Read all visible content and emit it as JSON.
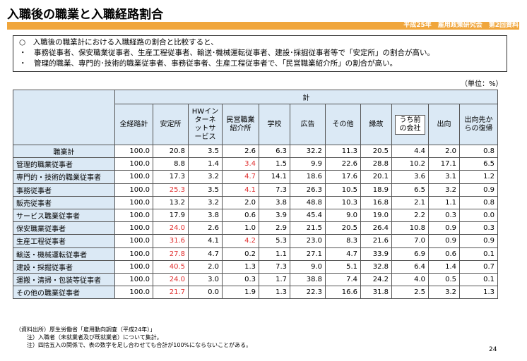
{
  "title": "入職後の職業と入職経路割合",
  "header_bar": "平成25年　雇用政策研究会　第2回資料",
  "summary": [
    "○　入職後の職業計における入職経路の割合と比較すると、",
    "・　事務従事者、保安職業従事者、生産工程従事者、輸送･機械運転従事者、建設･採掘従事者等で「安定所」の割合が高い。",
    "・　管理的職業、専門的･技術的職業従事者、事務従事者、生産工程従事者で、「民営職業紹介所」の割合が高い。"
  ],
  "unit": "（単位：%）",
  "table": {
    "group_header": "計",
    "columns": [
      "全経路計",
      "安定所",
      "HWインターネットサービス",
      "民営職業紹介所",
      "学校",
      "広告",
      "その他",
      "縁故",
      "うち前の会社",
      "出向",
      "出向先からの復帰"
    ],
    "rows": [
      {
        "label": "職業計",
        "values": [
          "100.0",
          "20.8",
          "3.5",
          "2.6",
          "6.3",
          "32.2",
          "11.3",
          "20.5",
          "4.4",
          "2.0",
          "0.8"
        ],
        "red": []
      },
      {
        "label": "管理的職業従事者",
        "values": [
          "100.0",
          "8.8",
          "1.4",
          "3.4",
          "1.5",
          "9.9",
          "22.6",
          "28.8",
          "10.2",
          "17.1",
          "6.5"
        ],
        "red": [
          3
        ]
      },
      {
        "label": "専門的・技術的職業従事者",
        "values": [
          "100.0",
          "17.3",
          "3.2",
          "4.7",
          "14.1",
          "18.6",
          "17.6",
          "20.1",
          "3.6",
          "3.1",
          "1.2"
        ],
        "red": [
          3
        ]
      },
      {
        "label": "事務従事者",
        "values": [
          "100.0",
          "25.3",
          "3.5",
          "4.1",
          "7.3",
          "26.3",
          "10.5",
          "18.9",
          "6.5",
          "3.2",
          "0.9"
        ],
        "red": [
          1,
          3
        ]
      },
      {
        "label": "販売従事者",
        "values": [
          "100.0",
          "13.2",
          "3.2",
          "2.0",
          "3.8",
          "48.8",
          "10.3",
          "16.8",
          "2.1",
          "1.1",
          "0.8"
        ],
        "red": []
      },
      {
        "label": "サービス職業従事者",
        "values": [
          "100.0",
          "17.9",
          "3.8",
          "0.6",
          "3.9",
          "45.4",
          "9.0",
          "19.0",
          "2.2",
          "0.3",
          "0.0"
        ],
        "red": []
      },
      {
        "label": "保安職業従事者",
        "values": [
          "100.0",
          "24.0",
          "2.6",
          "1.0",
          "2.9",
          "21.5",
          "20.5",
          "26.4",
          "10.8",
          "0.9",
          "0.3"
        ],
        "red": [
          1
        ]
      },
      {
        "label": "生産工程従事者",
        "values": [
          "100.0",
          "31.6",
          "4.1",
          "4.2",
          "5.3",
          "23.0",
          "8.3",
          "21.6",
          "7.0",
          "0.9",
          "0.9"
        ],
        "red": [
          1,
          3
        ]
      },
      {
        "label": "輸送・機械運転従事者",
        "values": [
          "100.0",
          "27.8",
          "4.7",
          "0.2",
          "1.1",
          "27.1",
          "4.7",
          "33.9",
          "6.9",
          "0.6",
          "0.1"
        ],
        "red": [
          1
        ]
      },
      {
        "label": "建設・採掘従事者",
        "values": [
          "100.0",
          "40.5",
          "2.0",
          "1.3",
          "7.3",
          "9.0",
          "5.1",
          "32.8",
          "6.4",
          "1.4",
          "0.7"
        ],
        "red": [
          1
        ]
      },
      {
        "label": "運搬・清掃・包装等従事者",
        "values": [
          "100.0",
          "24.0",
          "3.0",
          "0.3",
          "1.7",
          "38.8",
          "7.4",
          "24.2",
          "4.0",
          "0.5",
          "0.1"
        ],
        "red": [
          1
        ]
      },
      {
        "label": "その他の職業従事者",
        "values": [
          "100.0",
          "21.7",
          "0.0",
          "1.9",
          "1.3",
          "22.3",
          "16.6",
          "31.8",
          "2.5",
          "3.2",
          "1.3"
        ],
        "red": [
          1
        ]
      }
    ]
  },
  "notes": [
    "（資料出所）厚生労働省「雇用動向調査（平成24年）」",
    "　　注）入職者（未就業者及び既就業者）について集計。",
    "　　注）四捨五入の関係で、表の数字を足し合わせても合計が100%にならないことがある。"
  ],
  "page_number": "24",
  "colors": {
    "header_bar": "#f0a63c",
    "table_header": "#dbe9f5",
    "highlight": "#e03030"
  }
}
